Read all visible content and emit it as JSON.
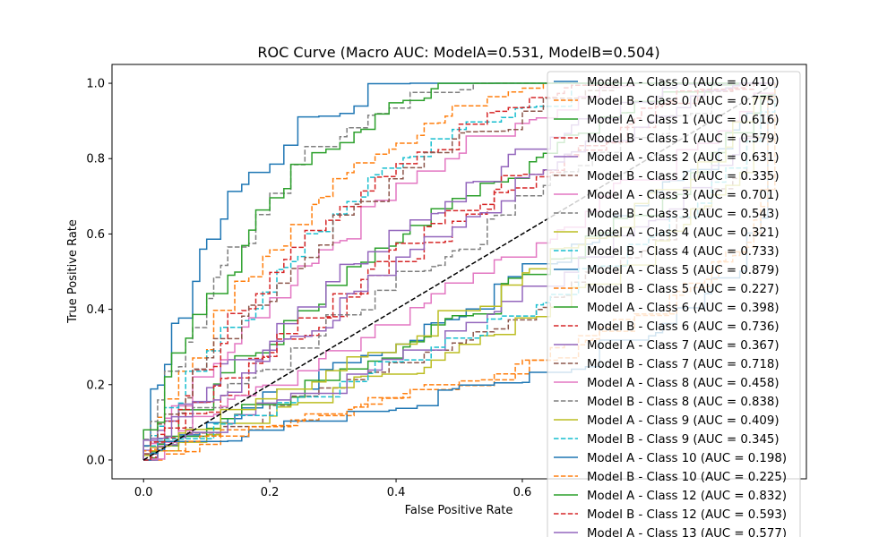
{
  "chart_data": {
    "type": "line",
    "title": "ROC Curve (Macro AUC: ModelA=0.531, ModelB=0.504)",
    "xlabel": "False Positive Rate",
    "ylabel": "True Positive Rate",
    "xlim": [
      -0.05,
      1.05
    ],
    "ylim": [
      -0.05,
      1.05
    ],
    "xticks": [
      0.0,
      0.2,
      0.4,
      0.6
    ],
    "yticks": [
      0.0,
      0.2,
      0.4,
      0.6,
      0.8,
      1.0
    ],
    "grid": false,
    "legend_position": "upper-right",
    "series": [
      {
        "name": "Model A - Class 0 (AUC = 0.410)",
        "color": "#1f77b4",
        "dash": "solid",
        "auc": 0.41
      },
      {
        "name": "Model B - Class 0 (AUC = 0.775)",
        "color": "#ff7f0e",
        "dash": "dashed",
        "auc": 0.775
      },
      {
        "name": "Model A - Class 1 (AUC = 0.616)",
        "color": "#2ca02c",
        "dash": "solid",
        "auc": 0.616
      },
      {
        "name": "Model B - Class 1 (AUC = 0.579)",
        "color": "#d62728",
        "dash": "dashed",
        "auc": 0.579
      },
      {
        "name": "Model A - Class 2 (AUC = 0.631)",
        "color": "#9467bd",
        "dash": "solid",
        "auc": 0.631
      },
      {
        "name": "Model B - Class 2 (AUC = 0.335)",
        "color": "#8c564b",
        "dash": "dashed",
        "auc": 0.335
      },
      {
        "name": "Model A - Class 3 (AUC = 0.701)",
        "color": "#e377c2",
        "dash": "solid",
        "auc": 0.701
      },
      {
        "name": "Model B - Class 3 (AUC = 0.543)",
        "color": "#7f7f7f",
        "dash": "dashed",
        "auc": 0.543
      },
      {
        "name": "Model A - Class 4 (AUC = 0.321)",
        "color": "#bcbd22",
        "dash": "solid",
        "auc": 0.321
      },
      {
        "name": "Model B - Class 4 (AUC = 0.733)",
        "color": "#17becf",
        "dash": "dashed",
        "auc": 0.733
      },
      {
        "name": "Model A - Class 5 (AUC = 0.879)",
        "color": "#1f77b4",
        "dash": "solid",
        "auc": 0.879
      },
      {
        "name": "Model B - Class 5 (AUC = 0.227)",
        "color": "#ff7f0e",
        "dash": "dashed",
        "auc": 0.227
      },
      {
        "name": "Model A - Class 6 (AUC = 0.398)",
        "color": "#2ca02c",
        "dash": "solid",
        "auc": 0.398
      },
      {
        "name": "Model B - Class 6 (AUC = 0.736)",
        "color": "#d62728",
        "dash": "dashed",
        "auc": 0.736
      },
      {
        "name": "Model A - Class 7 (AUC = 0.367)",
        "color": "#9467bd",
        "dash": "solid",
        "auc": 0.367
      },
      {
        "name": "Model B - Class 7 (AUC = 0.718)",
        "color": "#8c564b",
        "dash": "dashed",
        "auc": 0.718
      },
      {
        "name": "Model A - Class 8 (AUC = 0.458)",
        "color": "#e377c2",
        "dash": "solid",
        "auc": 0.458
      },
      {
        "name": "Model B - Class 8 (AUC = 0.838)",
        "color": "#7f7f7f",
        "dash": "dashed",
        "auc": 0.838
      },
      {
        "name": "Model A - Class 9 (AUC = 0.409)",
        "color": "#bcbd22",
        "dash": "solid",
        "auc": 0.409
      },
      {
        "name": "Model B - Class 9 (AUC = 0.345)",
        "color": "#17becf",
        "dash": "dashed",
        "auc": 0.345
      },
      {
        "name": "Model A - Class 10 (AUC = 0.198)",
        "color": "#1f77b4",
        "dash": "solid",
        "auc": 0.198
      },
      {
        "name": "Model B - Class 10 (AUC = 0.225)",
        "color": "#ff7f0e",
        "dash": "dashed",
        "auc": 0.225
      },
      {
        "name": "Model A - Class 12 (AUC = 0.832)",
        "color": "#2ca02c",
        "dash": "solid",
        "auc": 0.832
      },
      {
        "name": "Model B - Class 12 (AUC = 0.593)",
        "color": "#d62728",
        "dash": "dashed",
        "auc": 0.593
      },
      {
        "name": "Model A - Class 13 (AUC = 0.577)",
        "color": "#9467bd",
        "dash": "solid",
        "auc": 0.577
      }
    ],
    "diagonal": {
      "x": [
        0,
        1
      ],
      "y": [
        0,
        1
      ],
      "color": "#000000",
      "dash": "dashed"
    }
  }
}
